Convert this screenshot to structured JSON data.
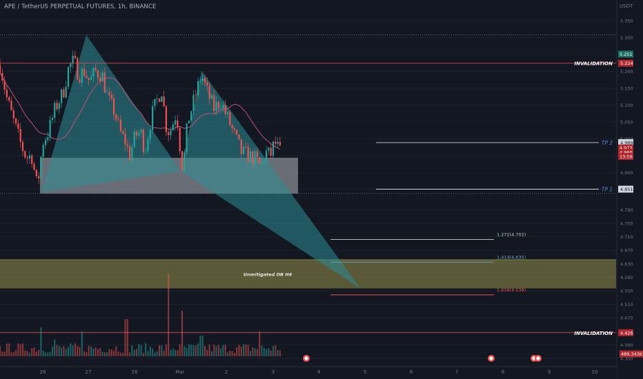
{
  "header": {
    "title": "APE / TetherUS PERPETUAL FUTURES, 1h, BINANCE",
    "unit": "USDT"
  },
  "colors": {
    "background": "#131722",
    "up": "#26a69a",
    "down": "#ef5350",
    "ma": "#c04f7a",
    "zone": "#d6ce5f",
    "invalidation": "#ef5350",
    "tp": "#d1d4dc",
    "triangle": "#2e8c93",
    "box": "#b7bcc4"
  },
  "chart_data": {
    "type": "candlestick",
    "title": "APE / TetherUS PERPETUAL FUTURES, 1h, BINANCE",
    "ylabel": "USDT",
    "ylim": [
      4.33,
      5.4
    ],
    "y_ticks": [
      "5.350",
      "5.300",
      "5.250",
      "5.200",
      "5.150",
      "5.100",
      "5.050",
      "5.000",
      "4.950",
      "4.900",
      "4.850",
      "4.790",
      "4.750",
      "4.710",
      "4.670",
      "4.630",
      "4.590",
      "4.550",
      "4.510",
      "4.470",
      "4.430",
      "4.390",
      "4.350"
    ],
    "x_ticks": [
      "26",
      "27",
      "28",
      "Mar",
      "2",
      "3",
      "4",
      "5",
      "6",
      "7",
      "8",
      "9",
      "10"
    ],
    "anchors": [
      {
        "t": 0,
        "p": 5.22
      },
      {
        "t": 10,
        "p": 5.12
      },
      {
        "t": 20,
        "p": 5.05
      },
      {
        "t": 30,
        "p": 4.985
      },
      {
        "t": 38,
        "p": 4.945
      },
      {
        "t": 46,
        "p": 4.95
      },
      {
        "t": 54,
        "p": 4.855
      },
      {
        "t": 62,
        "p": 4.99
      },
      {
        "t": 70,
        "p": 5.02
      },
      {
        "t": 80,
        "p": 5.09
      },
      {
        "t": 92,
        "p": 5.14
      },
      {
        "t": 100,
        "p": 5.215
      },
      {
        "t": 107,
        "p": 5.23
      },
      {
        "t": 114,
        "p": 5.19
      },
      {
        "t": 122,
        "p": 5.2
      },
      {
        "t": 130,
        "p": 5.17
      },
      {
        "t": 138,
        "p": 5.2
      },
      {
        "t": 148,
        "p": 5.19
      },
      {
        "t": 156,
        "p": 5.12
      },
      {
        "t": 166,
        "p": 5.08
      },
      {
        "t": 174,
        "p": 5.02
      },
      {
        "t": 182,
        "p": 4.99
      },
      {
        "t": 188,
        "p": 4.95
      },
      {
        "t": 196,
        "p": 5.01
      },
      {
        "t": 204,
        "p": 5.02
      },
      {
        "t": 210,
        "p": 4.965
      },
      {
        "t": 220,
        "p": 5.07
      },
      {
        "t": 234,
        "p": 5.15
      },
      {
        "t": 242,
        "p": 5.02
      },
      {
        "t": 248,
        "p": 5.03
      },
      {
        "t": 256,
        "p": 5.08
      },
      {
        "t": 260,
        "p": 4.995
      },
      {
        "t": 265,
        "p": 4.905
      },
      {
        "t": 272,
        "p": 5.05
      },
      {
        "t": 282,
        "p": 5.12
      },
      {
        "t": 292,
        "p": 5.19
      },
      {
        "t": 300,
        "p": 5.14
      },
      {
        "t": 310,
        "p": 5.09
      },
      {
        "t": 320,
        "p": 5.11
      },
      {
        "t": 330,
        "p": 5.06
      },
      {
        "t": 340,
        "p": 5.01
      },
      {
        "t": 350,
        "p": 4.96
      },
      {
        "t": 360,
        "p": 4.95
      },
      {
        "t": 370,
        "p": 4.94
      },
      {
        "t": 378,
        "p": 4.915
      },
      {
        "t": 385,
        "p": 4.96
      },
      {
        "t": 392,
        "p": 4.95
      },
      {
        "t": 398,
        "p": 4.99
      },
      {
        "t": 406,
        "p": 4.96
      }
    ],
    "candle_time": {
      "start": 0,
      "end": 406,
      "step": 3.3
    },
    "ma_period": 22,
    "volume_spikes": [
      {
        "t": 60,
        "v": 0.35
      },
      {
        "t": 80,
        "v": 0.2
      },
      {
        "t": 120,
        "v": 0.3
      },
      {
        "t": 183,
        "v": 0.45
      },
      {
        "t": 245,
        "v": 1.0
      },
      {
        "t": 263,
        "v": 0.55
      },
      {
        "t": 292,
        "v": 0.25
      },
      {
        "t": 375,
        "v": 0.3
      }
    ],
    "levels": [
      {
        "name": "INVALIDATION",
        "price": 5.224,
        "label": "INVALIDATION",
        "tag": "5.224"
      },
      {
        "name": "INVALIDATION",
        "price": 4.426,
        "label": "INVALIDATION",
        "tag": "4.426"
      },
      {
        "name": "TP 2",
        "price": 4.989,
        "label": "TP 2",
        "tag": "4.989"
      },
      {
        "name": "TP 1",
        "price": 4.851,
        "label": "TP 1",
        "tag": "4.851"
      }
    ],
    "fibs": [
      {
        "ratio": "1.272",
        "price": 4.702,
        "label": "1.272(4.702)"
      },
      {
        "ratio": "1.414",
        "price": 4.635,
        "label": "1.414(4.635)"
      },
      {
        "ratio": "1.618",
        "price": 4.538,
        "label": "1.618(4.538)"
      }
    ],
    "zone": {
      "label": "Unmitigated OB H4",
      "top": 4.642,
      "bottom": 4.557
    },
    "box": {
      "top": 4.944,
      "bottom": 4.838
    },
    "harmonic": {
      "X": {
        "t": 60,
        "p": 4.842
      },
      "A": {
        "t": 125,
        "p": 5.308
      },
      "B": {
        "t": 262,
        "p": 4.904
      },
      "C": {
        "t": 292,
        "p": 5.202
      },
      "D": {
        "t": 523,
        "p": 4.556
      }
    },
    "price_tags": [
      {
        "value": "5.251",
        "kind": "green"
      },
      {
        "value": "4.973",
        "kind": "red"
      },
      {
        "value": "4.960",
        "kind": "red"
      },
      {
        "value": "13:59",
        "kind": "red"
      },
      {
        "value": "489.343K",
        "kind": "red"
      }
    ],
    "dotted_line_price": 5.308,
    "events": [
      {
        "t": 444
      },
      {
        "t": 712
      },
      {
        "t": 774
      },
      {
        "t": 780
      }
    ]
  }
}
